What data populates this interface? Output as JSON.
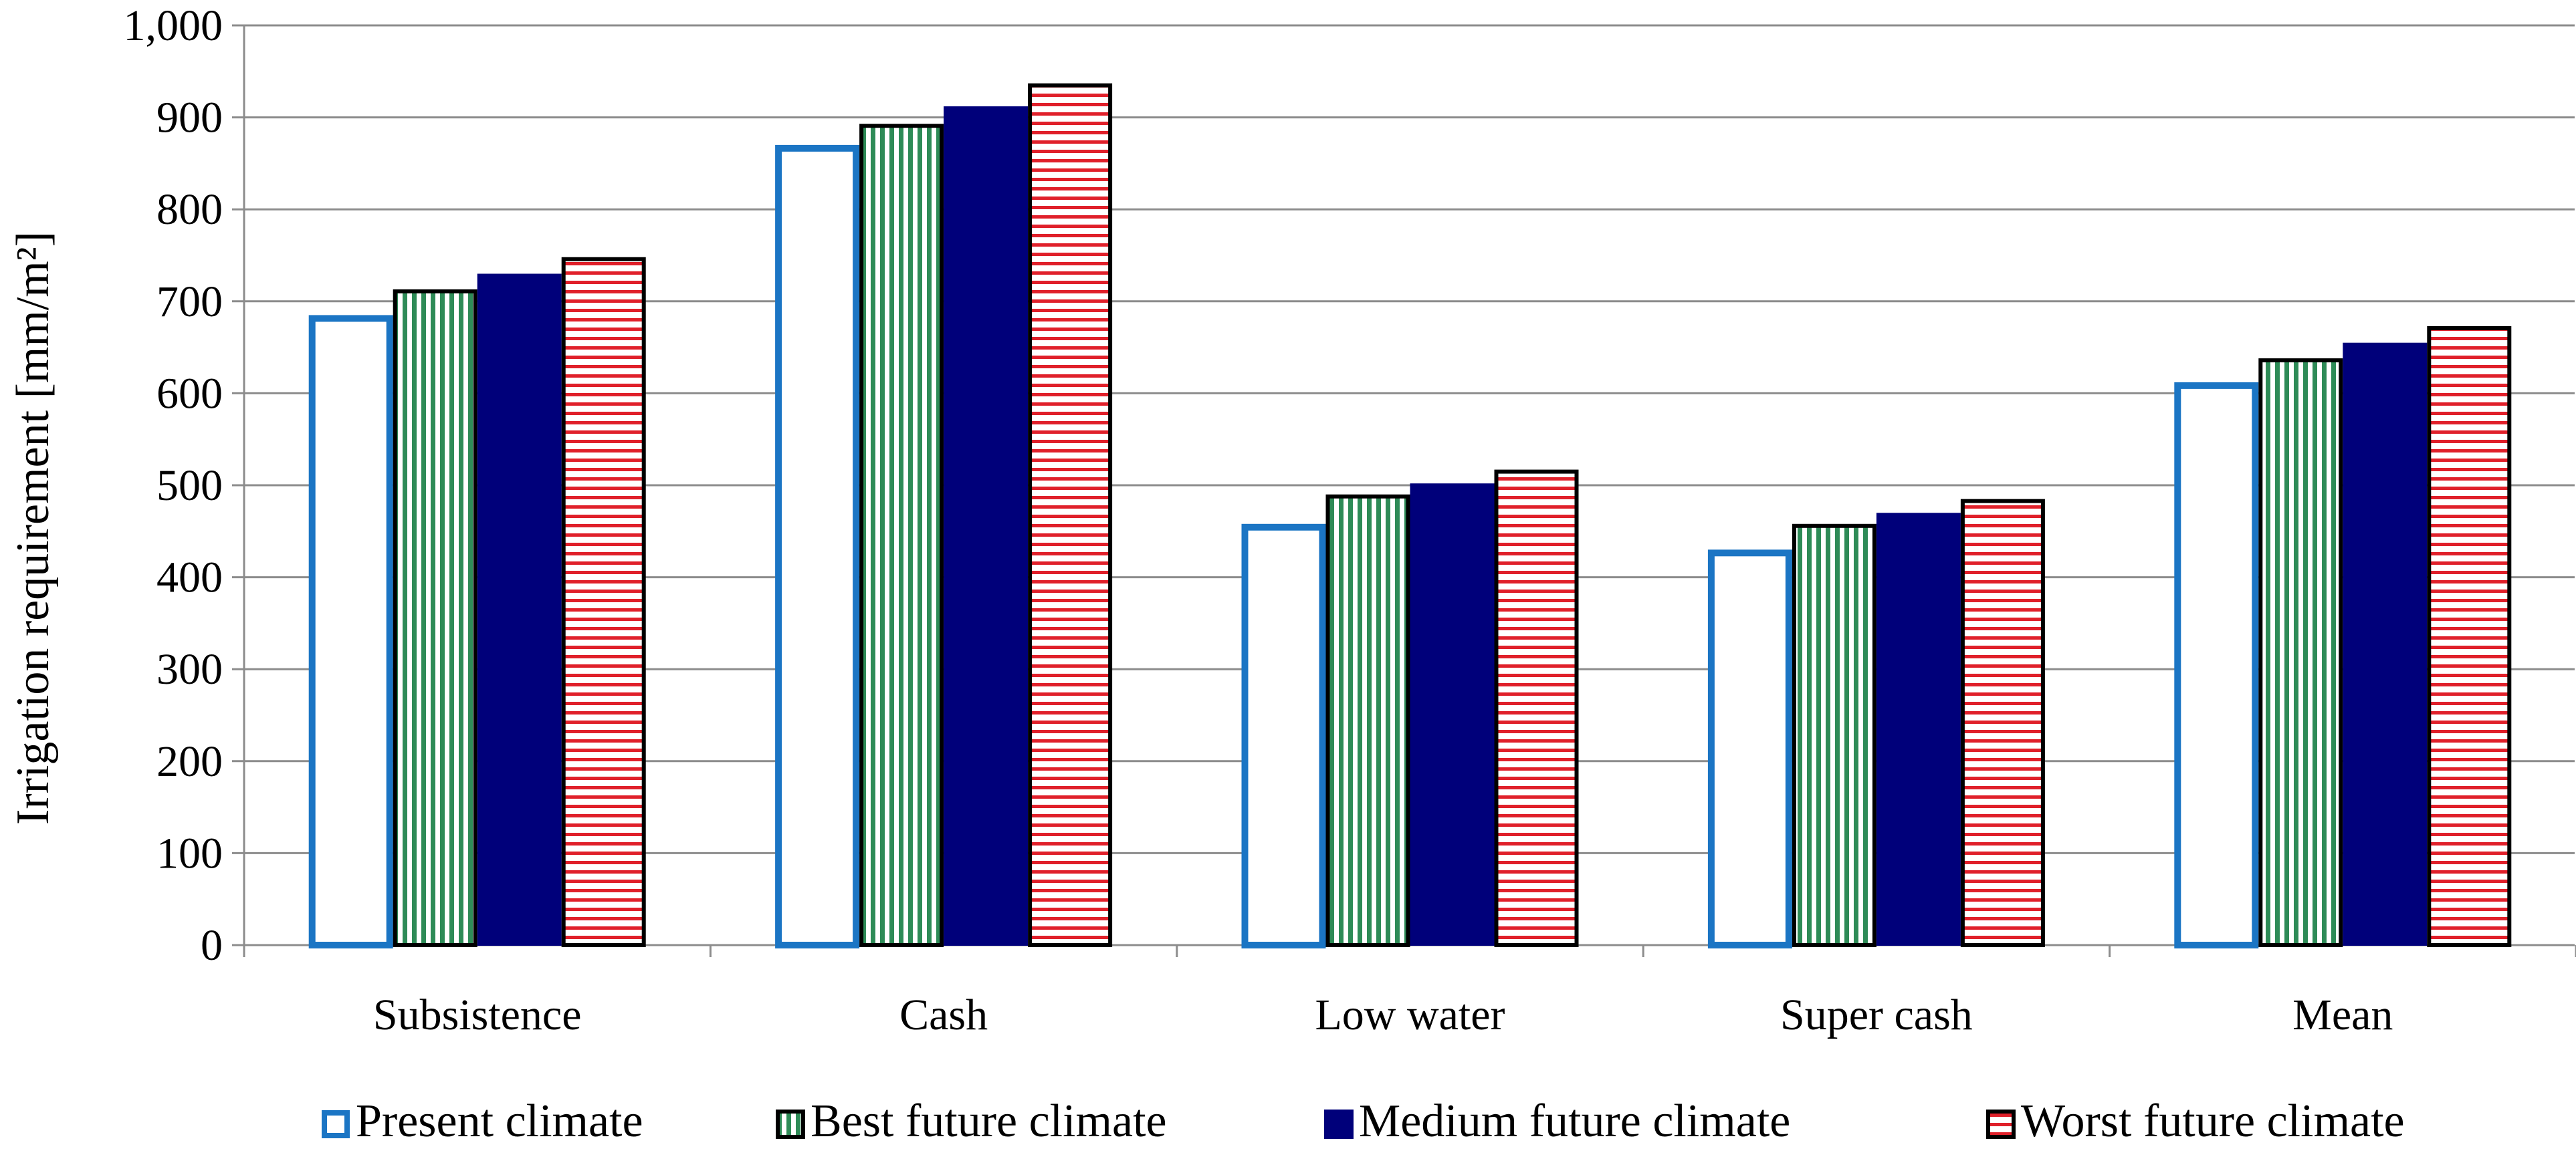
{
  "chart_data": {
    "type": "bar",
    "title": "",
    "xlabel": "",
    "ylabel": "Irrigation requirement [mm/m²]",
    "ylim": [
      0,
      1000
    ],
    "y_ticks": [
      0,
      100,
      200,
      300,
      400,
      500,
      600,
      700,
      800,
      900,
      1000
    ],
    "y_tick_labels": [
      "0",
      "100",
      "200",
      "300",
      "400",
      "500",
      "600",
      "700",
      "800",
      "900",
      "1,000"
    ],
    "grid": true,
    "legend_position": "bottom",
    "categories": [
      "Subsistence",
      "Cash",
      "Low water",
      "Super cash",
      "Mean"
    ],
    "series": [
      {
        "name": "Present climate",
        "values": [
          685,
          870,
          458,
          430,
          612
        ],
        "style": "outline",
        "color": "#1B75C4"
      },
      {
        "name": "Best future climate",
        "values": [
          713,
          893,
          490,
          458,
          638
        ],
        "style": "vertical-stripes",
        "color": "#2E8B57"
      },
      {
        "name": "Medium future climate",
        "values": [
          730,
          912,
          502,
          470,
          655
        ],
        "style": "solid",
        "color": "#00007A"
      },
      {
        "name": "Worst future climate",
        "values": [
          748,
          937,
          517,
          485,
          673
        ],
        "style": "horizontal-stripes",
        "color": "#E0202A"
      }
    ]
  }
}
